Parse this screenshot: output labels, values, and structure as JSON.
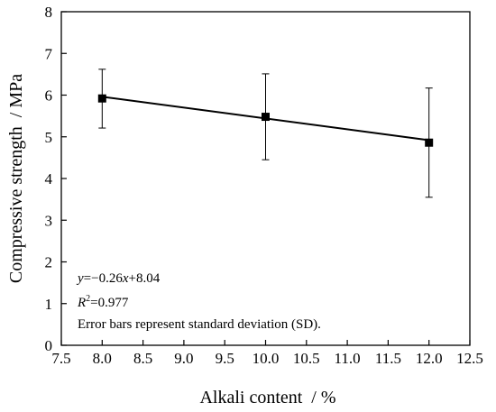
{
  "chart_data": {
    "type": "scatter",
    "title": "",
    "xlabel": "Alkali content  / %",
    "ylabel": "Compressive strength  / MPa",
    "xlim": [
      7.5,
      12.5
    ],
    "ylim": [
      0,
      8
    ],
    "xticks": [
      "7.5",
      "8.0",
      "8.5",
      "9.0",
      "9.5",
      "10.0",
      "10.5",
      "11.0",
      "11.5",
      "12.0",
      "12.5"
    ],
    "yticks": [
      "0",
      "1",
      "2",
      "3",
      "4",
      "5",
      "6",
      "7",
      "8"
    ],
    "grid": false,
    "series": [
      {
        "x": [
          8.0,
          10.0,
          12.0
        ],
        "y": [
          5.92,
          5.48,
          4.86
        ],
        "error_low": [
          5.21,
          4.45,
          3.55
        ],
        "error_high": [
          6.62,
          6.51,
          6.17
        ]
      }
    ],
    "fit": {
      "slope": -0.26,
      "intercept": 8.04,
      "x_range": [
        8.0,
        12.0
      ]
    },
    "annotations": {
      "equation": {
        "y": "y",
        "rest1": "=−0.26",
        "x": "x",
        "rest2": "+8.04"
      },
      "r2": {
        "r": "R",
        "sup": "2",
        "rest": "=0.977"
      },
      "note": "Error bars represent standard deviation (SD)."
    }
  }
}
